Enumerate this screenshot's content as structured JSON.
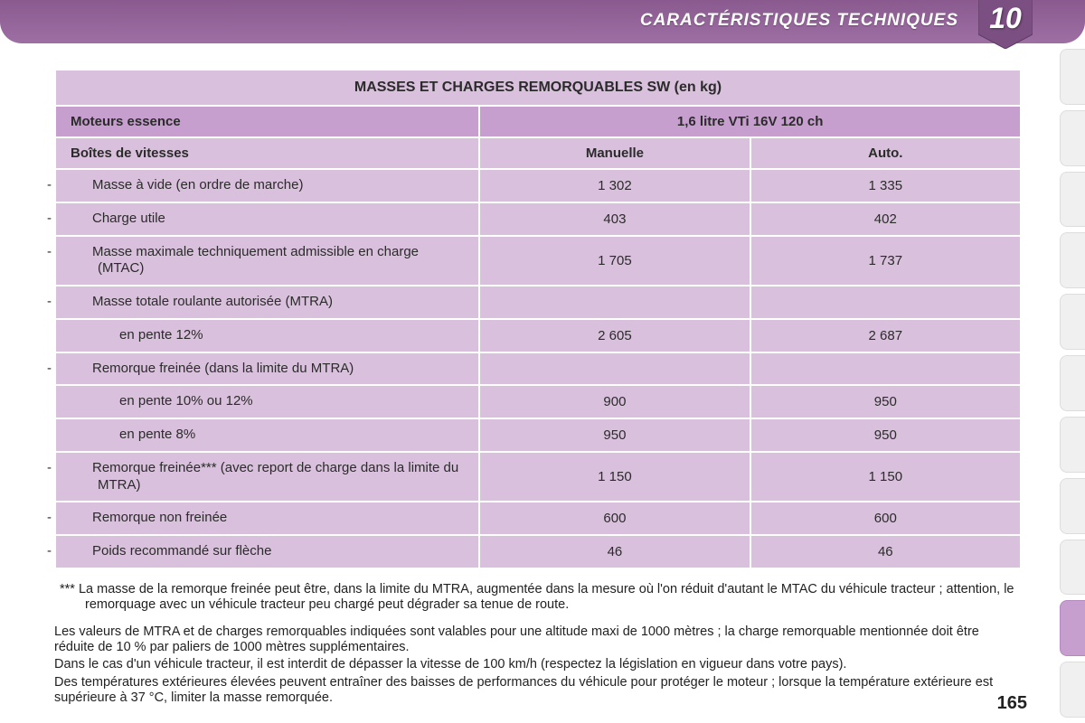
{
  "header": {
    "section_title": "CARACTÉRISTIQUES TECHNIQUES",
    "chapter_number": "10",
    "page_number": "165"
  },
  "table": {
    "title": "MASSES ET CHARGES REMORQUABLES SW (en kg)",
    "engine_label": "Moteurs essence",
    "engine_value": "1,6 litre VTi 16V 120 ch",
    "gearbox_label": "Boîtes de vitesses",
    "gearbox_cols": [
      "Manuelle",
      "Auto."
    ],
    "rows": [
      {
        "label": "Masse à vide (en ordre de marche)",
        "dash": true,
        "vals": [
          "1 302",
          "1 335"
        ]
      },
      {
        "label": "Charge utile",
        "dash": true,
        "vals": [
          "403",
          "402"
        ]
      },
      {
        "label": "Masse maximale techniquement admissible en charge (MTAC)",
        "dash": true,
        "vals": [
          "1 705",
          "1 737"
        ]
      },
      {
        "label": "Masse totale roulante autorisée (MTRA)",
        "dash": true,
        "vals": [
          "",
          ""
        ]
      },
      {
        "label": "en pente 12%",
        "dash": false,
        "indent": true,
        "vals": [
          "2 605",
          "2 687"
        ]
      },
      {
        "label": "Remorque freinée (dans la limite du MTRA)",
        "dash": true,
        "vals": [
          "",
          ""
        ]
      },
      {
        "label": "en pente 10% ou 12%",
        "dash": false,
        "indent": true,
        "vals": [
          "900",
          "950"
        ]
      },
      {
        "label": "en pente 8%",
        "dash": false,
        "indent": true,
        "vals": [
          "950",
          "950"
        ]
      },
      {
        "label": "Remorque freinée*** (avec report de charge dans la limite du MTRA)",
        "dash": true,
        "vals": [
          "1 150",
          "1 150"
        ]
      },
      {
        "label": "Remorque non freinée",
        "dash": true,
        "vals": [
          "600",
          "600"
        ]
      },
      {
        "label": "Poids recommandé sur flèche",
        "dash": true,
        "vals": [
          "46",
          "46"
        ]
      }
    ]
  },
  "notes": {
    "n1": "*** La masse de la remorque freinée peut être, dans la limite du MTRA, augmentée dans la mesure où l'on réduit d'autant le MTAC du véhicule tracteur ; attention, le remorquage avec un véhicule tracteur peu chargé peut dégrader sa tenue de route.",
    "n2": "Les valeurs de MTRA et de charges remorquables indiquées sont valables pour une altitude maxi de 1000 mètres ; la charge remorquable mentionnée doit être réduite de 10 % par paliers de 1000 mètres supplémentaires.",
    "n3": "Dans le cas d'un véhicule tracteur, il est interdit de dépasser la vitesse de 100 km/h (respectez la législation en vigueur dans votre pays).",
    "n4": "Des températures extérieures élevées peuvent entraîner des baisses de performances du véhicule pour protéger le moteur ; lorsque la température extérieure est supérieure à 37 °C, limiter la masse remorquée."
  },
  "colors": {
    "header_gradient_top": "#8a5a8f",
    "header_gradient_bottom": "#9d6fa3",
    "cell_light": "#d9c0dc",
    "cell_dark": "#c79fcf"
  }
}
